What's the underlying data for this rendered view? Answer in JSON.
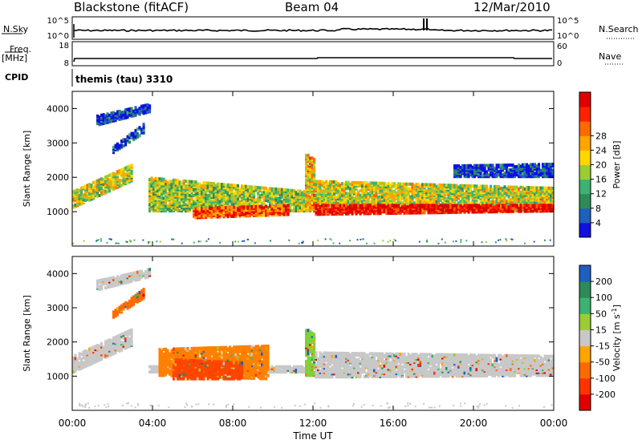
{
  "header": {
    "station": "Blackstone (fitACF)",
    "beam": "Beam 04",
    "date": "12/Mar/2010"
  },
  "top_panels": {
    "nsky_label": "N.Sky",
    "nsearch_label": "N.Search",
    "freq_label": "Freq.",
    "freq_unit": "[MHz]",
    "nave_label": "Nave",
    "cpid_label": "CPID",
    "cpid_value": "themis (tau) 3310",
    "noise_left_ticks": [
      "10^5",
      "10^0"
    ],
    "noise_right_ticks": [
      "10^5",
      "10^0"
    ],
    "freq_ticks": [
      "18",
      "8"
    ],
    "nave_ticks": [
      "60",
      "0"
    ]
  },
  "chart_data": [
    {
      "type": "heatmap",
      "title": "Power",
      "ylabel": "Slant Range [km]",
      "xlabel": "Time UT",
      "x_ticks": [
        "00:00",
        "04:00",
        "08:00",
        "12:00",
        "16:00",
        "20:00",
        "00:00"
      ],
      "y_ticks": [
        1000,
        2000,
        3000,
        4000
      ],
      "ylim": [
        0,
        4500
      ],
      "colorbar": {
        "label": "Power [dB]",
        "ticks": [
          "4",
          "8",
          "12",
          "16",
          "20",
          "24",
          "28"
        ],
        "colors": [
          "#1010e0",
          "#1f5fbf",
          "#2e8b57",
          "#3cb371",
          "#9acd32",
          "#ffd700",
          "#ffa500",
          "#ff6a00",
          "#ff2200",
          "#e00000"
        ]
      },
      "echo_regions": [
        {
          "start_hr": 0.0,
          "end_hr": 3.0,
          "range_lo_km": 1100,
          "range_hi_km": 1600,
          "end_range_lo_km": 1900,
          "end_range_hi_km": 2400,
          "level": 0.5
        },
        {
          "start_hr": 1.2,
          "end_hr": 3.9,
          "range_lo_km": 3500,
          "range_hi_km": 3800,
          "end_range_lo_km": 3900,
          "end_range_hi_km": 4150,
          "level": 0.1
        },
        {
          "start_hr": 2.0,
          "end_hr": 3.6,
          "range_lo_km": 2700,
          "range_hi_km": 2900,
          "end_range_lo_km": 3300,
          "end_range_hi_km": 3600,
          "level": 0.15
        },
        {
          "start_hr": 3.8,
          "end_hr": 11.6,
          "range_lo_km": 1000,
          "range_hi_km": 2000,
          "end_range_lo_km": 1000,
          "end_range_hi_km": 1600,
          "level": 0.45
        },
        {
          "start_hr": 6.0,
          "end_hr": 10.8,
          "range_lo_km": 800,
          "range_hi_km": 1100,
          "end_range_lo_km": 900,
          "end_range_hi_km": 1200,
          "level": 0.8
        },
        {
          "start_hr": 11.6,
          "end_hr": 12.1,
          "range_lo_km": 1000,
          "range_hi_km": 2700,
          "end_range_lo_km": 1000,
          "end_range_hi_km": 2500,
          "level": 0.6
        },
        {
          "start_hr": 12.1,
          "end_hr": 24.0,
          "range_lo_km": 1000,
          "range_hi_km": 1900,
          "end_range_lo_km": 1000,
          "end_range_hi_km": 1700,
          "level": 0.5
        },
        {
          "start_hr": 12.1,
          "end_hr": 24.0,
          "range_lo_km": 900,
          "range_hi_km": 1200,
          "end_range_lo_km": 1000,
          "end_range_hi_km": 1200,
          "level": 0.95
        },
        {
          "start_hr": 19.0,
          "end_hr": 24.0,
          "range_lo_km": 2000,
          "range_hi_km": 2350,
          "end_range_lo_km": 2000,
          "end_range_hi_km": 2400,
          "level": 0.1
        }
      ]
    },
    {
      "type": "heatmap",
      "title": "Velocity",
      "ylabel": "Slant Range [km]",
      "xlabel": "Time UT",
      "x_ticks": [
        "00:00",
        "04:00",
        "08:00",
        "12:00",
        "16:00",
        "20:00",
        "00:00"
      ],
      "y_ticks": [
        1000,
        2000,
        3000,
        4000
      ],
      "ylim": [
        0,
        4500
      ],
      "colorbar": {
        "label": "Velocity [m s",
        "label_sup": "-1",
        "label_end": "]",
        "ticks": [
          "-200",
          "-100",
          "-50",
          "-15",
          "15",
          "50",
          "100",
          "200"
        ],
        "colors": [
          "#e00000",
          "#ff3300",
          "#ff6a00",
          "#ffa500",
          "#c8c8c8",
          "#9acd32",
          "#3cb371",
          "#2e8b57",
          "#1f5fbf"
        ]
      },
      "echo_regions": [
        {
          "start_hr": 0.0,
          "end_hr": 3.0,
          "range_lo_km": 1100,
          "range_hi_km": 1600,
          "end_range_lo_km": 1900,
          "end_range_hi_km": 2400,
          "color": "#c8c8c8"
        },
        {
          "start_hr": 1.2,
          "end_hr": 3.9,
          "range_lo_km": 3500,
          "range_hi_km": 3800,
          "end_range_lo_km": 3900,
          "end_range_hi_km": 4150,
          "color": "#c8c8c8"
        },
        {
          "start_hr": 2.0,
          "end_hr": 3.6,
          "range_lo_km": 2700,
          "range_hi_km": 2900,
          "end_range_lo_km": 3300,
          "end_range_hi_km": 3600,
          "color": "#ff6a00"
        },
        {
          "start_hr": 3.8,
          "end_hr": 11.6,
          "range_lo_km": 1100,
          "range_hi_km": 1300,
          "end_range_lo_km": 1100,
          "end_range_hi_km": 1300,
          "color": "#c8c8c8"
        },
        {
          "start_hr": 4.3,
          "end_hr": 9.8,
          "range_lo_km": 1000,
          "range_hi_km": 1800,
          "end_range_lo_km": 900,
          "end_range_hi_km": 1900,
          "color": "#ff8000"
        },
        {
          "start_hr": 5.0,
          "end_hr": 8.5,
          "range_lo_km": 900,
          "range_hi_km": 1500,
          "end_range_lo_km": 900,
          "end_range_hi_km": 1400,
          "color": "#ff4500"
        },
        {
          "start_hr": 11.6,
          "end_hr": 12.1,
          "range_lo_km": 1000,
          "range_hi_km": 2400,
          "end_range_lo_km": 1000,
          "end_range_hi_km": 2200,
          "color": "#7fd13b"
        },
        {
          "start_hr": 12.1,
          "end_hr": 24.0,
          "range_lo_km": 950,
          "range_hi_km": 1700,
          "end_range_lo_km": 1000,
          "end_range_hi_km": 1600,
          "color": "#c8c8c8"
        }
      ]
    }
  ]
}
